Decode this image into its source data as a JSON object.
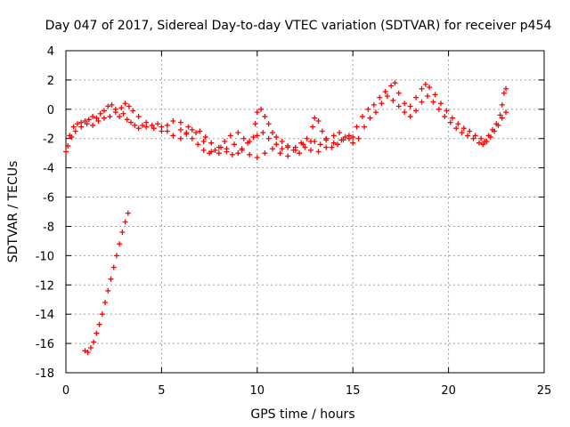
{
  "chart_data": {
    "type": "scatter",
    "title": "Day 047 of 2017, Sidereal Day-to-day VTEC variation (SDTVAR) for receiver p454",
    "xlabel": "GPS time / hours",
    "ylabel": "SDTVAR / TECUs",
    "xlim": [
      0,
      25
    ],
    "ylim": [
      -18,
      4
    ],
    "xticks": [
      "0",
      "5",
      "10",
      "15",
      "20",
      "25"
    ],
    "yticks": [
      "-18",
      "-16",
      "-14",
      "-12",
      "-10",
      "-8",
      "-6",
      "-4",
      "-2",
      "0",
      "2",
      "4"
    ],
    "grid": true,
    "marker": "plus",
    "color": "#ff0000",
    "series": [
      {
        "name": "track-1",
        "points": [
          [
            0.0,
            -2.9
          ],
          [
            0.1,
            -2.5
          ],
          [
            0.2,
            -1.8
          ],
          [
            0.4,
            -1.2
          ],
          [
            0.6,
            -1.0
          ],
          [
            0.8,
            -0.9
          ],
          [
            1.0,
            -0.8
          ],
          [
            1.2,
            -0.7
          ],
          [
            1.4,
            -0.5
          ],
          [
            1.6,
            -0.6
          ],
          [
            1.8,
            -0.3
          ],
          [
            2.0,
            -0.1
          ],
          [
            2.2,
            0.2
          ],
          [
            2.4,
            0.3
          ],
          [
            2.6,
            0.0
          ],
          [
            2.8,
            -0.5
          ],
          [
            3.0,
            -0.3
          ],
          [
            3.2,
            -0.7
          ],
          [
            3.4,
            -0.9
          ],
          [
            3.6,
            -1.1
          ],
          [
            3.8,
            -1.3
          ],
          [
            4.0,
            -1.1
          ],
          [
            4.2,
            -1.2
          ],
          [
            4.5,
            -1.1
          ],
          [
            4.8,
            -1.0
          ],
          [
            5.0,
            -1.2
          ],
          [
            5.3,
            -1.5
          ],
          [
            5.6,
            -1.8
          ],
          [
            6.0,
            -2.0
          ],
          [
            6.3,
            -1.7
          ],
          [
            6.6,
            -1.4
          ],
          [
            7.0,
            -1.5
          ],
          [
            7.3,
            -1.9
          ],
          [
            7.6,
            -2.3
          ],
          [
            8.0,
            -2.6
          ],
          [
            8.3,
            -2.2
          ],
          [
            8.6,
            -1.8
          ],
          [
            9.0,
            -1.6
          ],
          [
            9.3,
            -2.0
          ],
          [
            9.6,
            -2.2
          ],
          [
            10.0,
            -1.8
          ],
          [
            10.3,
            -1.6
          ],
          [
            10.6,
            -2.0
          ],
          [
            11.0,
            -2.4
          ],
          [
            11.3,
            -2.7
          ],
          [
            11.6,
            -2.5
          ],
          [
            12.0,
            -2.6
          ],
          [
            12.3,
            -2.3
          ],
          [
            12.6,
            -2.0
          ],
          [
            13.0,
            -2.2
          ],
          [
            13.3,
            -2.4
          ],
          [
            13.6,
            -2.0
          ],
          [
            14.0,
            -1.8
          ],
          [
            14.3,
            -1.6
          ],
          [
            14.6,
            -1.9
          ],
          [
            15.0,
            -2.3
          ]
        ]
      },
      {
        "name": "track-2",
        "points": [
          [
            0.3,
            -1.9
          ],
          [
            0.5,
            -1.5
          ],
          [
            0.8,
            -1.2
          ],
          [
            1.1,
            -1.0
          ],
          [
            1.4,
            -1.1
          ],
          [
            1.7,
            -0.8
          ],
          [
            2.0,
            -0.6
          ],
          [
            2.3,
            -0.5
          ],
          [
            2.6,
            -0.2
          ],
          [
            2.9,
            0.1
          ],
          [
            3.1,
            0.4
          ],
          [
            3.3,
            0.2
          ],
          [
            3.5,
            -0.1
          ],
          [
            3.8,
            -0.5
          ],
          [
            4.2,
            -0.9
          ],
          [
            4.6,
            -1.3
          ],
          [
            5.0,
            -1.5
          ],
          [
            5.3,
            -1.1
          ],
          [
            5.6,
            -0.8
          ],
          [
            6.0,
            -0.9
          ],
          [
            6.4,
            -1.2
          ],
          [
            6.8,
            -1.6
          ],
          [
            7.2,
            -2.2
          ],
          [
            7.6,
            -2.9
          ],
          [
            8.0,
            -3.0
          ],
          [
            8.4,
            -2.7
          ],
          [
            8.8,
            -2.4
          ],
          [
            9.2,
            -2.8
          ],
          [
            9.6,
            -3.1
          ],
          [
            10.0,
            -3.3
          ],
          [
            10.4,
            -3.0
          ],
          [
            10.8,
            -2.7
          ],
          [
            11.2,
            -3.0
          ],
          [
            11.6,
            -3.2
          ],
          [
            12.0,
            -2.8
          ],
          [
            12.4,
            -2.4
          ],
          [
            12.8,
            -2.8
          ],
          [
            13.2,
            -2.9
          ],
          [
            13.6,
            -2.6
          ],
          [
            14.0,
            -2.3
          ],
          [
            14.4,
            -2.1
          ],
          [
            14.8,
            -2.0
          ],
          [
            15.0,
            -1.9
          ]
        ]
      },
      {
        "name": "track-3",
        "points": [
          [
            6.0,
            -1.4
          ],
          [
            6.3,
            -1.6
          ],
          [
            6.6,
            -2.0
          ],
          [
            6.9,
            -2.4
          ],
          [
            7.2,
            -2.8
          ],
          [
            7.5,
            -3.0
          ],
          [
            7.8,
            -2.8
          ],
          [
            8.1,
            -2.6
          ],
          [
            8.4,
            -2.9
          ],
          [
            8.7,
            -3.1
          ],
          [
            9.0,
            -3.0
          ],
          [
            9.2,
            -2.7
          ],
          [
            9.5,
            -2.3
          ],
          [
            9.8,
            -1.9
          ],
          [
            9.9,
            -1.0
          ],
          [
            10.0,
            -0.2
          ],
          [
            10.2,
            0.0
          ],
          [
            10.4,
            -0.5
          ],
          [
            10.6,
            -1.0
          ],
          [
            10.8,
            -1.6
          ],
          [
            11.0,
            -1.9
          ],
          [
            11.3,
            -2.2
          ],
          [
            11.6,
            -2.6
          ],
          [
            11.9,
            -2.8
          ],
          [
            12.2,
            -3.0
          ],
          [
            12.5,
            -2.6
          ],
          [
            12.8,
            -2.2
          ],
          [
            12.9,
            -1.2
          ],
          [
            13.0,
            -0.6
          ],
          [
            13.2,
            -0.8
          ],
          [
            13.4,
            -1.5
          ],
          [
            13.6,
            -2.1
          ],
          [
            13.9,
            -2.6
          ],
          [
            14.2,
            -2.4
          ],
          [
            14.5,
            -2.1
          ],
          [
            14.8,
            -1.8
          ]
        ]
      },
      {
        "name": "track-4",
        "points": [
          [
            15.2,
            -1.2
          ],
          [
            15.5,
            -0.5
          ],
          [
            15.8,
            0.0
          ],
          [
            16.1,
            0.3
          ],
          [
            16.4,
            0.8
          ],
          [
            16.7,
            1.2
          ],
          [
            17.0,
            1.6
          ],
          [
            17.2,
            1.8
          ],
          [
            17.4,
            1.1
          ],
          [
            17.7,
            0.4
          ],
          [
            18.0,
            0.2
          ],
          [
            18.3,
            0.8
          ],
          [
            18.6,
            1.4
          ],
          [
            18.8,
            1.7
          ],
          [
            19.0,
            1.5
          ],
          [
            19.3,
            1.0
          ],
          [
            19.6,
            0.4
          ],
          [
            19.9,
            -0.1
          ],
          [
            20.2,
            -0.6
          ],
          [
            20.5,
            -1.0
          ],
          [
            20.8,
            -1.3
          ],
          [
            21.1,
            -1.5
          ],
          [
            21.4,
            -1.8
          ],
          [
            21.7,
            -2.0
          ],
          [
            21.9,
            -2.2
          ],
          [
            22.1,
            -1.8
          ],
          [
            22.3,
            -1.4
          ],
          [
            22.5,
            -1.0
          ],
          [
            22.7,
            -0.4
          ],
          [
            22.8,
            0.3
          ],
          [
            22.9,
            1.1
          ],
          [
            23.0,
            1.4
          ]
        ]
      },
      {
        "name": "track-5",
        "points": [
          [
            15.3,
            -2.0
          ],
          [
            15.6,
            -1.2
          ],
          [
            15.9,
            -0.6
          ],
          [
            16.2,
            -0.2
          ],
          [
            16.5,
            0.4
          ],
          [
            16.8,
            0.9
          ],
          [
            17.1,
            0.6
          ],
          [
            17.4,
            0.2
          ],
          [
            17.7,
            -0.2
          ],
          [
            18.0,
            -0.5
          ],
          [
            18.3,
            -0.1
          ],
          [
            18.6,
            0.5
          ],
          [
            18.9,
            0.9
          ],
          [
            19.2,
            0.5
          ],
          [
            19.5,
            0.0
          ],
          [
            19.8,
            -0.5
          ],
          [
            20.1,
            -0.9
          ],
          [
            20.4,
            -1.3
          ],
          [
            20.7,
            -1.6
          ],
          [
            21.0,
            -1.8
          ],
          [
            21.3,
            -2.0
          ],
          [
            21.6,
            -2.3
          ],
          [
            21.8,
            -2.4
          ],
          [
            22.0,
            -2.2
          ],
          [
            22.2,
            -1.9
          ],
          [
            22.4,
            -1.5
          ],
          [
            22.6,
            -1.1
          ],
          [
            22.8,
            -0.6
          ],
          [
            23.0,
            -0.2
          ]
        ]
      },
      {
        "name": "track-6",
        "points": [
          [
            1.0,
            -16.5
          ],
          [
            1.15,
            -16.6
          ],
          [
            1.3,
            -16.3
          ],
          [
            1.45,
            -15.9
          ],
          [
            1.6,
            -15.3
          ],
          [
            1.75,
            -14.7
          ],
          [
            1.9,
            -14.0
          ],
          [
            2.05,
            -13.2
          ],
          [
            2.2,
            -12.4
          ],
          [
            2.35,
            -11.6
          ],
          [
            2.5,
            -10.8
          ],
          [
            2.65,
            -10.0
          ],
          [
            2.8,
            -9.2
          ],
          [
            2.95,
            -8.4
          ],
          [
            3.1,
            -7.7
          ],
          [
            3.25,
            -7.1
          ]
        ]
      }
    ]
  }
}
